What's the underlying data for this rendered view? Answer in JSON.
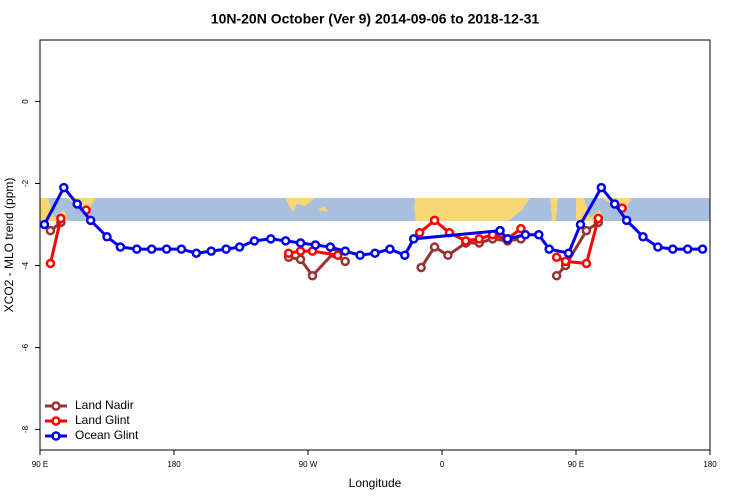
{
  "chart_data": {
    "type": "line",
    "title": "10N-20N October (Ver 9)   2014-09-06 to 2018-12-31",
    "x_label": "Longitude",
    "y_label": "XCO2 - MLO trend (ppm)",
    "xlim": [
      90,
      540
    ],
    "xticks": [
      {
        "value": 90,
        "label": "90 E"
      },
      180,
      {
        "value": 270,
        "label": "90 W"
      },
      {
        "value": 360,
        "label": "0"
      },
      {
        "value": 450,
        "label": "90 E"
      },
      {
        "value": 540,
        "label": "180"
      }
    ],
    "ylim": [
      -8.5,
      1.5
    ],
    "yticks": [
      0,
      -2,
      -4,
      -6,
      -8
    ],
    "legend": "bottom-left",
    "series": [
      {
        "name": "Land Nadir",
        "color": "#993333",
        "x": [
          97,
          104,
          null,
          257,
          265,
          273,
          287,
          295,
          null,
          346,
          355,
          364,
          376,
          385,
          394,
          404,
          413,
          null,
          437,
          443,
          457,
          465
        ],
        "values": [
          -3.15,
          -2.95,
          null,
          -3.8,
          -3.85,
          -4.25,
          -3.7,
          -3.9,
          null,
          -4.05,
          -3.55,
          -3.75,
          -3.45,
          -3.45,
          -3.35,
          -3.4,
          -3.35,
          null,
          -4.25,
          -4.0,
          -3.15,
          -2.95
        ]
      },
      {
        "name": "Land Glint",
        "color": "#ff0000",
        "x": [
          97,
          104,
          null,
          121,
          null,
          257,
          265,
          273,
          290,
          null,
          345,
          355,
          365,
          376,
          385,
          394,
          404,
          413,
          null,
          437,
          443,
          457,
          465,
          null,
          481
        ],
        "values": [
          -3.95,
          -2.85,
          null,
          -2.65,
          null,
          -3.7,
          -3.65,
          -3.65,
          -3.75,
          null,
          -3.2,
          -2.9,
          -3.2,
          -3.4,
          -3.35,
          -3.25,
          -3.35,
          -3.1,
          null,
          -3.8,
          -3.9,
          -3.95,
          -2.85,
          null,
          -2.6
        ]
      },
      {
        "name": "Ocean Glint",
        "color": "#0000ee",
        "x": [
          93,
          106,
          115,
          124,
          135,
          144,
          155,
          165,
          175,
          185,
          195,
          205,
          215,
          224,
          234,
          245,
          255,
          265,
          275,
          285,
          295,
          305,
          315,
          325,
          335,
          341,
          399,
          404,
          416,
          425,
          432,
          445,
          453,
          467,
          476,
          484,
          495,
          505,
          515,
          525,
          535
        ],
        "values": [
          -3.0,
          -2.1,
          -2.5,
          -2.9,
          -3.3,
          -3.55,
          -3.6,
          -3.6,
          -3.6,
          -3.6,
          -3.7,
          -3.65,
          -3.6,
          -3.55,
          -3.4,
          -3.35,
          -3.4,
          -3.45,
          -3.5,
          -3.55,
          -3.65,
          -3.75,
          -3.7,
          -3.6,
          -3.75,
          -3.35,
          -3.15,
          -3.35,
          -3.25,
          -3.25,
          -3.6,
          -3.7,
          -3.0,
          -2.1,
          -2.5,
          -2.9,
          -3.3,
          -3.55,
          -3.6,
          -3.6,
          -3.6
        ]
      }
    ]
  }
}
